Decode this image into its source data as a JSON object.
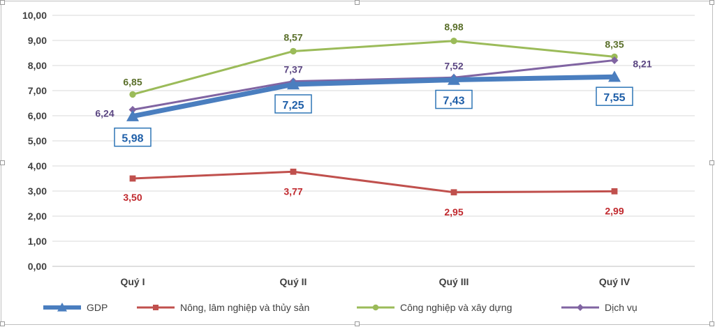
{
  "chart_data": {
    "type": "line",
    "title": "",
    "xlabel": "",
    "ylabel": "",
    "categories": [
      "Quý I",
      "Quý II",
      "Quý III",
      "Quý IV"
    ],
    "ylim": [
      0,
      10
    ],
    "yticks": [
      "0,00",
      "1,00",
      "2,00",
      "3,00",
      "4,00",
      "5,00",
      "6,00",
      "7,00",
      "8,00",
      "9,00",
      "10,00"
    ],
    "grid": true,
    "legend_position": "bottom",
    "series": [
      {
        "name": "GDP",
        "values": [
          5.98,
          7.25,
          7.43,
          7.55
        ],
        "labels": [
          "5,98",
          "7,25",
          "7,43",
          "7,55"
        ],
        "color": "#4a7ebf",
        "marker": "triangle"
      },
      {
        "name": "Nông, lâm nghiệp và thủy sản",
        "values": [
          3.5,
          3.77,
          2.95,
          2.99
        ],
        "labels": [
          "3,50",
          "3,77",
          "2,95",
          "2,99"
        ],
        "color": "#c0504d",
        "marker": "square"
      },
      {
        "name": "Công nghiệp và xây dựng",
        "values": [
          6.85,
          8.57,
          8.98,
          8.35
        ],
        "labels": [
          "6,85",
          "8,57",
          "8,98",
          "8,35"
        ],
        "color": "#9bbb59",
        "marker": "circle"
      },
      {
        "name": "Dịch vụ",
        "values": [
          6.24,
          7.37,
          7.52,
          8.21
        ],
        "labels": [
          "6,24",
          "7,37",
          "7,52",
          "8,21"
        ],
        "color": "#8064a2",
        "marker": "diamond"
      }
    ],
    "label_colors": {
      "GDP": "#1f5fa8",
      "Nông, lâm nghiệp và thủy sản": "#c0282d",
      "Công nghiệp và xây dựng": "#5a6f2a",
      "Dịch vụ": "#5b4682"
    }
  }
}
